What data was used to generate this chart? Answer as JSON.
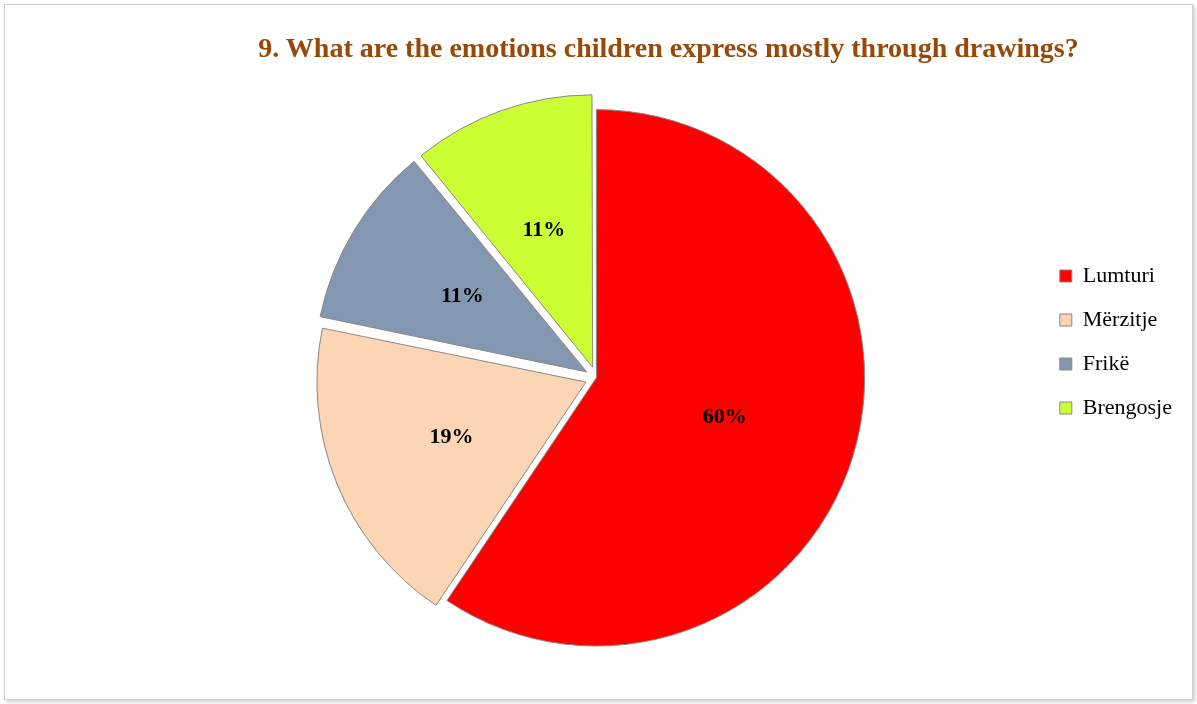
{
  "chart_data": {
    "type": "pie",
    "title": "9. What are the emotions children express mostly through drawings?",
    "categories": [
      "Lumturi",
      "Mërzitje",
      "Frikë",
      "Brengosje"
    ],
    "values": [
      60,
      19,
      11,
      11
    ],
    "value_labels": [
      "60%",
      "19%",
      "11%",
      "11%"
    ],
    "colors": [
      "#ff0000",
      "#fcd5b5",
      "#8497b0",
      "#ccff33"
    ],
    "legend": "right"
  }
}
